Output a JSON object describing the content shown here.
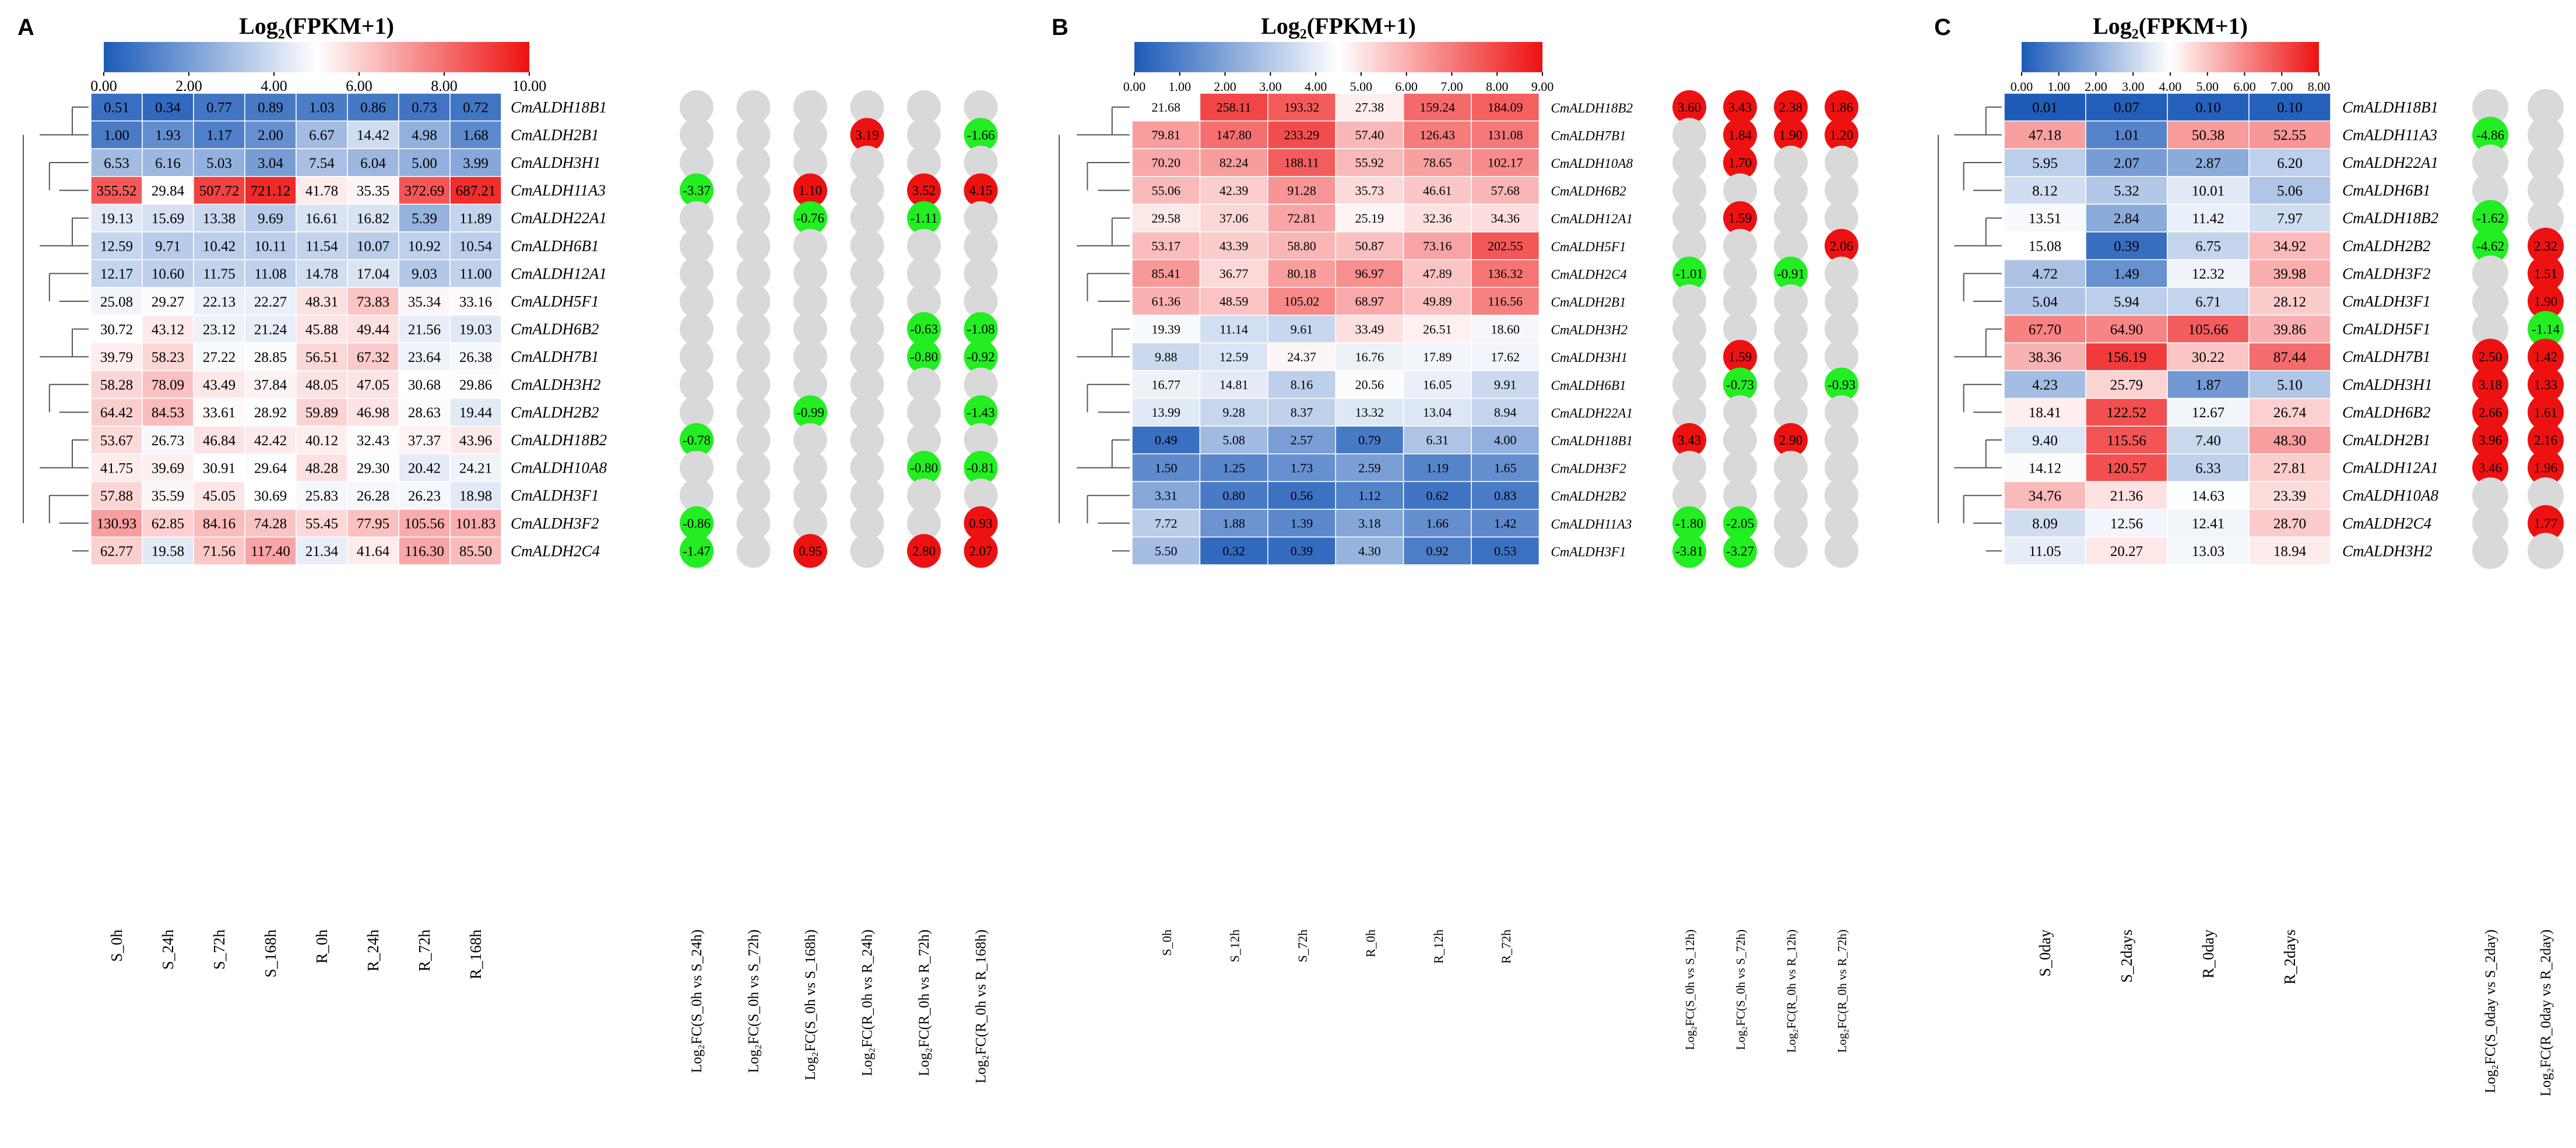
{
  "colors": {
    "low": "#1d5bb8",
    "mid": "#ffffff",
    "high": "#ee1111",
    "up": "#ee1111",
    "down": "#22ee22",
    "none": "#d9d9d9",
    "text": "#000000"
  },
  "chart_data": [
    {
      "type": "heatmap",
      "panel": "A",
      "title": "Log₂(FPKM+1)",
      "colorbar_ticks": [
        "0.00",
        "2.00",
        "4.00",
        "6.00",
        "8.00",
        "10.00"
      ],
      "colorbar_range": [
        0,
        10
      ],
      "columns": [
        "S_0h",
        "S_24h",
        "S_72h",
        "S_168h",
        "R_0h",
        "R_24h",
        "R_72h",
        "R_168h"
      ],
      "rows": [
        {
          "gene": "CmALDH18B1",
          "values": [
            "0.51",
            "0.34",
            "0.77",
            "0.89",
            "1.03",
            "0.86",
            "0.73",
            "0.72"
          ]
        },
        {
          "gene": "CmALDH2B1",
          "values": [
            "1.00",
            "1.93",
            "1.17",
            "2.00",
            "6.67",
            "14.42",
            "4.98",
            "1.68"
          ]
        },
        {
          "gene": "CmALDH3H1",
          "values": [
            "6.53",
            "6.16",
            "5.03",
            "3.04",
            "7.54",
            "6.04",
            "5.00",
            "3.99"
          ]
        },
        {
          "gene": "CmALDH11A3",
          "values": [
            "355.52",
            "29.84",
            "507.72",
            "721.12",
            "41.78",
            "35.35",
            "372.69",
            "687.21"
          ]
        },
        {
          "gene": "CmALDH22A1",
          "values": [
            "19.13",
            "15.69",
            "13.38",
            "9.69",
            "16.61",
            "16.82",
            "5.39",
            "11.89"
          ]
        },
        {
          "gene": "CmALDH6B1",
          "values": [
            "12.59",
            "9.71",
            "10.42",
            "10.11",
            "11.54",
            "10.07",
            "10.92",
            "10.54"
          ]
        },
        {
          "gene": "CmALDH12A1",
          "values": [
            "12.17",
            "10.60",
            "11.75",
            "11.08",
            "14.78",
            "17.04",
            "9.03",
            "11.00"
          ]
        },
        {
          "gene": "CmALDH5F1",
          "values": [
            "25.08",
            "29.27",
            "22.13",
            "22.27",
            "48.31",
            "73.83",
            "35.34",
            "33.16"
          ]
        },
        {
          "gene": "CmALDH6B2",
          "values": [
            "30.72",
            "43.12",
            "23.12",
            "21.24",
            "45.88",
            "49.44",
            "21.56",
            "19.03"
          ]
        },
        {
          "gene": "CmALDH7B1",
          "values": [
            "39.79",
            "58.23",
            "27.22",
            "28.85",
            "56.51",
            "67.32",
            "23.64",
            "26.38"
          ]
        },
        {
          "gene": "CmALDH3H2",
          "values": [
            "58.28",
            "78.09",
            "43.49",
            "37.84",
            "48.05",
            "47.05",
            "30.68",
            "29.86"
          ]
        },
        {
          "gene": "CmALDH2B2",
          "values": [
            "64.42",
            "84.53",
            "33.61",
            "28.92",
            "59.89",
            "46.98",
            "28.63",
            "19.44"
          ]
        },
        {
          "gene": "CmALDH18B2",
          "values": [
            "53.67",
            "26.73",
            "46.84",
            "42.42",
            "40.12",
            "32.43",
            "37.37",
            "43.96"
          ]
        },
        {
          "gene": "CmALDH10A8",
          "values": [
            "41.75",
            "39.69",
            "30.91",
            "29.64",
            "48.28",
            "29.30",
            "20.42",
            "24.21"
          ]
        },
        {
          "gene": "CmALDH3F1",
          "values": [
            "57.88",
            "35.59",
            "45.05",
            "30.69",
            "25.83",
            "26.28",
            "26.23",
            "18.98"
          ]
        },
        {
          "gene": "CmALDH3F2",
          "values": [
            "130.93",
            "62.85",
            "84.16",
            "74.28",
            "55.45",
            "77.95",
            "105.56",
            "101.83"
          ]
        },
        {
          "gene": "CmALDH2C4",
          "values": [
            "62.77",
            "19.58",
            "71.56",
            "117.40",
            "21.34",
            "41.64",
            "116.30",
            "85.50"
          ]
        }
      ],
      "fc_columns": [
        "Log₂FC(S_0h vs S_24h)",
        "Log₂FC(S_0h vs S_72h)",
        "Log₂FC(S_0h vs S_168h)",
        "Log₂FC(R_0h vs R_24h)",
        "Log₂FC(R_0h vs R_72h)",
        "Log₂FC(R_0h vs R_168h)"
      ],
      "fc": [
        [
          "",
          "",
          "",
          "",
          "",
          ""
        ],
        [
          "",
          "",
          "",
          "3.19",
          "",
          "-1.66"
        ],
        [
          "",
          "",
          "",
          "",
          "",
          ""
        ],
        [
          "-3.37",
          "",
          "1.10",
          "",
          "3.52",
          "4.15"
        ],
        [
          "",
          "",
          "-0.76",
          "",
          "-1.11",
          ""
        ],
        [
          "",
          "",
          "",
          "",
          "",
          ""
        ],
        [
          "",
          "",
          "",
          "",
          "",
          ""
        ],
        [
          "",
          "",
          "",
          "",
          "",
          ""
        ],
        [
          "",
          "",
          "",
          "",
          "-0.63",
          "-1.08"
        ],
        [
          "",
          "",
          "",
          "",
          "-0.80",
          "-0.92"
        ],
        [
          "",
          "",
          "",
          "",
          "",
          ""
        ],
        [
          "",
          "",
          "-0.99",
          "",
          "",
          "-1.43"
        ],
        [
          "-0.78",
          "",
          "",
          "",
          "",
          ""
        ],
        [
          "",
          "",
          "",
          "",
          "-0.80",
          "-0.81"
        ],
        [
          "",
          "",
          "",
          "",
          "",
          ""
        ],
        [
          "-0.86",
          "",
          "",
          "",
          "",
          "0.93"
        ],
        [
          "-1.47",
          "",
          "0.95",
          "",
          "2.80",
          "2.07"
        ]
      ]
    },
    {
      "type": "heatmap",
      "panel": "B",
      "title": "Log₂(FPKM+1)",
      "colorbar_ticks": [
        "0.00",
        "1.00",
        "2.00",
        "3.00",
        "4.00",
        "5.00",
        "6.00",
        "7.00",
        "8.00",
        "9.00"
      ],
      "colorbar_range": [
        0,
        9
      ],
      "columns": [
        "S_0h",
        "S_12h",
        "S_72h",
        "R_0h",
        "R_12h",
        "R_72h"
      ],
      "rows": [
        {
          "gene": "CmALDH18B2",
          "values": [
            "21.68",
            "258.11",
            "193.32",
            "27.38",
            "159.24",
            "184.09"
          ]
        },
        {
          "gene": "CmALDH7B1",
          "values": [
            "79.81",
            "147.80",
            "233.29",
            "57.40",
            "126.43",
            "131.08"
          ]
        },
        {
          "gene": "CmALDH10A8",
          "values": [
            "70.20",
            "82.24",
            "188.11",
            "55.92",
            "78.65",
            "102.17"
          ]
        },
        {
          "gene": "CmALDH6B2",
          "values": [
            "55.06",
            "42.39",
            "91.28",
            "35.73",
            "46.61",
            "57.68"
          ]
        },
        {
          "gene": "CmALDH12A1",
          "values": [
            "29.58",
            "37.06",
            "72.81",
            "25.19",
            "32.36",
            "34.36"
          ]
        },
        {
          "gene": "CmALDH5F1",
          "values": [
            "53.17",
            "43.39",
            "58.80",
            "50.87",
            "73.16",
            "202.55"
          ]
        },
        {
          "gene": "CmALDH2C4",
          "values": [
            "85.41",
            "36.77",
            "80.18",
            "96.97",
            "47.89",
            "136.32"
          ]
        },
        {
          "gene": "CmALDH2B1",
          "values": [
            "61.36",
            "48.59",
            "105.02",
            "68.97",
            "49.89",
            "116.56"
          ]
        },
        {
          "gene": "CmALDH3H2",
          "values": [
            "19.39",
            "11.14",
            "9.61",
            "33.49",
            "26.51",
            "18.60"
          ]
        },
        {
          "gene": "CmALDH3H1",
          "values": [
            "9.88",
            "12.59",
            "24.37",
            "16.76",
            "17.89",
            "17.62"
          ]
        },
        {
          "gene": "CmALDH6B1",
          "values": [
            "16.77",
            "14.81",
            "8.16",
            "20.56",
            "16.05",
            "9.91"
          ]
        },
        {
          "gene": "CmALDH22A1",
          "values": [
            "13.99",
            "9.28",
            "8.37",
            "13.32",
            "13.04",
            "8.94"
          ]
        },
        {
          "gene": "CmALDH18B1",
          "values": [
            "0.49",
            "5.08",
            "2.57",
            "0.79",
            "6.31",
            "4.00"
          ]
        },
        {
          "gene": "CmALDH3F2",
          "values": [
            "1.50",
            "1.25",
            "1.73",
            "2.59",
            "1.19",
            "1.65"
          ]
        },
        {
          "gene": "CmALDH2B2",
          "values": [
            "3.31",
            "0.80",
            "0.56",
            "1.12",
            "0.62",
            "0.83"
          ]
        },
        {
          "gene": "CmALDH11A3",
          "values": [
            "7.72",
            "1.88",
            "1.39",
            "3.18",
            "1.66",
            "1.42"
          ]
        },
        {
          "gene": "CmALDH3F1",
          "values": [
            "5.50",
            "0.32",
            "0.39",
            "4.30",
            "0.92",
            "0.53"
          ]
        }
      ],
      "fc_columns": [
        "Log₂FC(S_0h vs S_12h)",
        "Log₂FC(S_0h vs S_72h)",
        "Log₂FC(R_0h vs R_12h)",
        "Log₂FC(R_0h vs R_72h)"
      ],
      "fc": [
        [
          "3.60",
          "3.43",
          "2.38",
          "1.86"
        ],
        [
          "",
          "1.84",
          "1.90",
          "1.20"
        ],
        [
          "",
          "1.70",
          "",
          ""
        ],
        [
          "",
          "",
          "",
          ""
        ],
        [
          "",
          "1.59",
          "",
          ""
        ],
        [
          "",
          "",
          "",
          "2.06"
        ],
        [
          "-1.01",
          "",
          "-0.91",
          ""
        ],
        [
          "",
          "",
          "",
          ""
        ],
        [
          "",
          "",
          "",
          ""
        ],
        [
          "",
          "1.59",
          "",
          ""
        ],
        [
          "",
          "-0.73",
          "",
          "-0.93"
        ],
        [
          "",
          "",
          "",
          ""
        ],
        [
          "3.43",
          "",
          "2.90",
          ""
        ],
        [
          "",
          "",
          "",
          ""
        ],
        [
          "",
          "",
          "",
          ""
        ],
        [
          "-1.80",
          "-2.05",
          "",
          ""
        ],
        [
          "-3.81",
          "-3.27",
          "",
          ""
        ]
      ]
    },
    {
      "type": "heatmap",
      "panel": "C",
      "title": "Log₂(FPKM+1)",
      "colorbar_ticks": [
        "0.00",
        "1.00",
        "2.00",
        "3.00",
        "4.00",
        "5.00",
        "6.00",
        "7.00",
        "8.00"
      ],
      "colorbar_range": [
        0,
        8
      ],
      "columns": [
        "S_0day",
        "S_2days",
        "R_0day",
        "R_2days"
      ],
      "rows": [
        {
          "gene": "CmALDH18B1",
          "values": [
            "0.01",
            "0.07",
            "0.10",
            "0.10"
          ]
        },
        {
          "gene": "CmALDH11A3",
          "values": [
            "47.18",
            "1.01",
            "50.38",
            "52.55"
          ]
        },
        {
          "gene": "CmALDH22A1",
          "values": [
            "5.95",
            "2.07",
            "2.87",
            "6.20"
          ]
        },
        {
          "gene": "CmALDH6B1",
          "values": [
            "8.12",
            "5.32",
            "10.01",
            "5.06"
          ]
        },
        {
          "gene": "CmALDH18B2",
          "values": [
            "13.51",
            "2.84",
            "11.42",
            "7.97"
          ]
        },
        {
          "gene": "CmALDH2B2",
          "values": [
            "15.08",
            "0.39",
            "6.75",
            "34.92"
          ]
        },
        {
          "gene": "CmALDH3F2",
          "values": [
            "4.72",
            "1.49",
            "12.32",
            "39.98"
          ]
        },
        {
          "gene": "CmALDH3F1",
          "values": [
            "5.04",
            "5.94",
            "6.71",
            "28.12"
          ]
        },
        {
          "gene": "CmALDH5F1",
          "values": [
            "67.70",
            "64.90",
            "105.66",
            "39.86"
          ]
        },
        {
          "gene": "CmALDH7B1",
          "values": [
            "38.36",
            "156.19",
            "30.22",
            "87.44"
          ]
        },
        {
          "gene": "CmALDH3H1",
          "values": [
            "4.23",
            "25.79",
            "1.87",
            "5.10"
          ]
        },
        {
          "gene": "CmALDH6B2",
          "values": [
            "18.41",
            "122.52",
            "12.67",
            "26.74"
          ]
        },
        {
          "gene": "CmALDH2B1",
          "values": [
            "9.40",
            "115.56",
            "7.40",
            "48.30"
          ]
        },
        {
          "gene": "CmALDH12A1",
          "values": [
            "14.12",
            "120.57",
            "6.33",
            "27.81"
          ]
        },
        {
          "gene": "CmALDH10A8",
          "values": [
            "34.76",
            "21.36",
            "14.63",
            "23.39"
          ]
        },
        {
          "gene": "CmALDH2C4",
          "values": [
            "8.09",
            "12.56",
            "12.41",
            "28.70"
          ]
        },
        {
          "gene": "CmALDH3H2",
          "values": [
            "11.05",
            "20.27",
            "13.03",
            "18.94"
          ]
        }
      ],
      "fc_columns": [
        "Log₂FC(S_0day vs S_2day)",
        "Log₂FC(R_0day vs R_2day)"
      ],
      "fc": [
        [
          "",
          ""
        ],
        [
          "-4.86",
          ""
        ],
        [
          "",
          ""
        ],
        [
          "",
          ""
        ],
        [
          "-1.62",
          ""
        ],
        [
          "-4.62",
          "2.32"
        ],
        [
          "",
          "1.51"
        ],
        [
          "",
          "1.90"
        ],
        [
          "",
          "-1.14"
        ],
        [
          "2.50",
          "1.42"
        ],
        [
          "3.18",
          "1.33"
        ],
        [
          "2.66",
          "1.61"
        ],
        [
          "3.96",
          "2.16"
        ],
        [
          "3.46",
          "1.96"
        ],
        [
          "",
          ""
        ],
        [
          "",
          "1.77"
        ],
        [
          "",
          ""
        ]
      ]
    }
  ]
}
